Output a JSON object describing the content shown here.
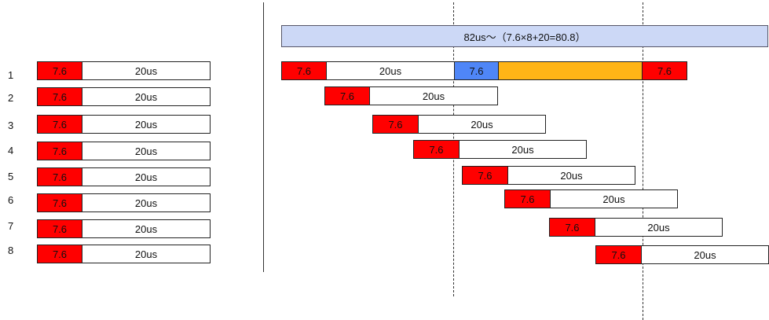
{
  "header_text": "82us～（7.6×8+20=80.8）",
  "row_labels": [
    "1",
    "2",
    "3",
    "4",
    "5",
    "6",
    "7",
    "8"
  ],
  "short_label": "7.6",
  "long_label": "20us",
  "colors": {
    "red": "#ff0000",
    "blue": "#4f86f7",
    "orange": "#ffb416",
    "header_bg": "#ccd8f6"
  }
}
